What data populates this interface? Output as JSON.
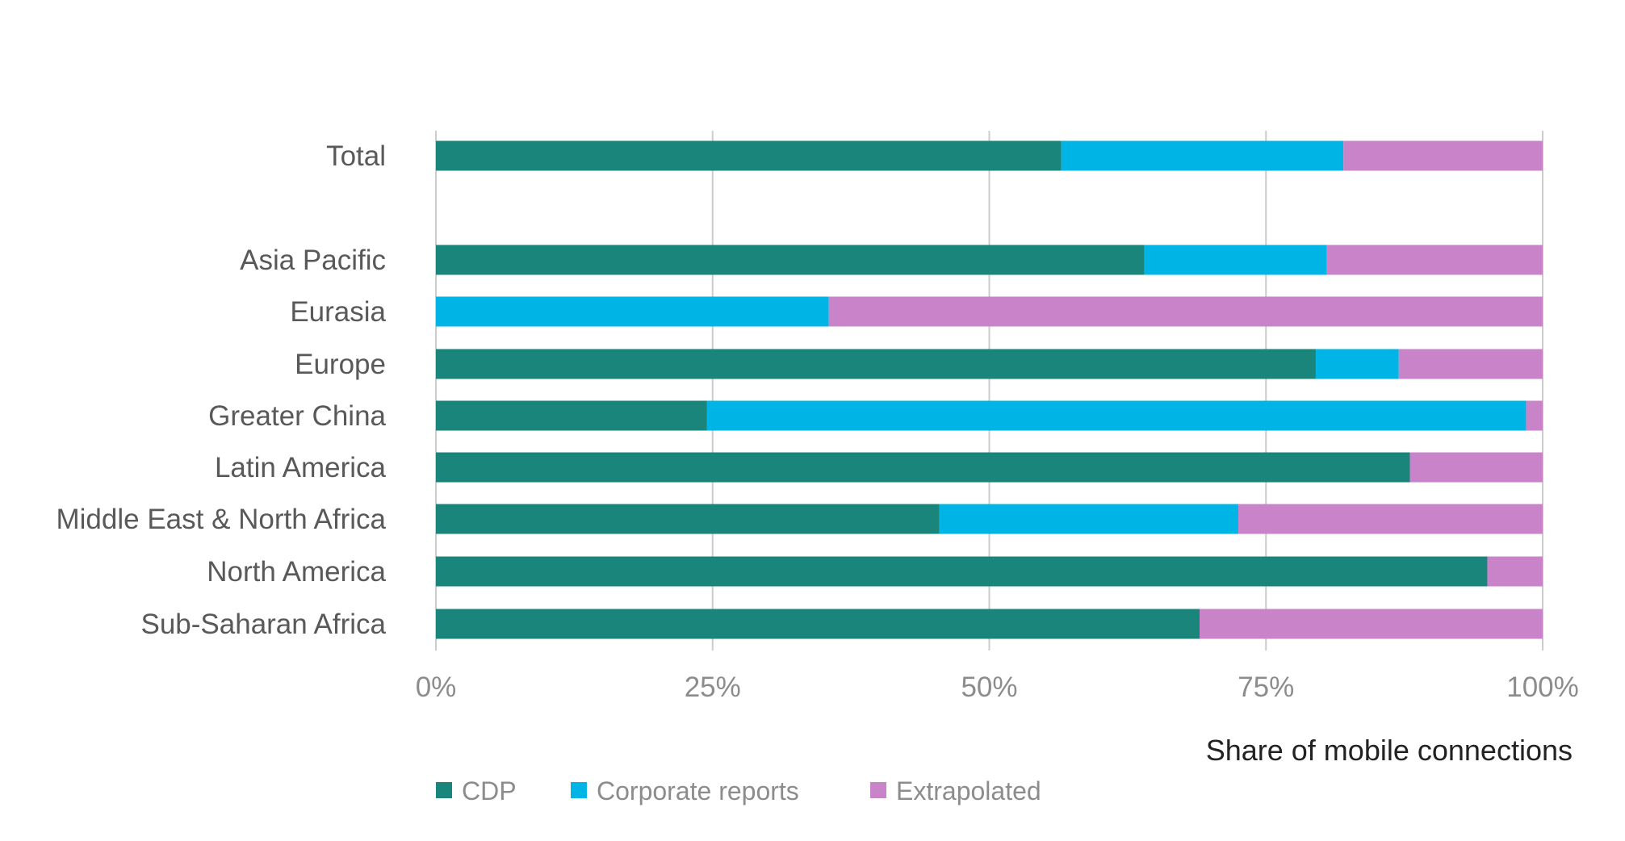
{
  "chart_data": {
    "type": "bar",
    "orientation": "horizontal",
    "stacked": true,
    "categories": [
      "Total",
      "",
      "Asia Pacific",
      "Eurasia",
      "Europe",
      "Greater China",
      "Latin America",
      "Middle East & North Africa",
      "North America",
      "Sub-Saharan Africa"
    ],
    "series": [
      {
        "name": "CDP",
        "color": "#1a857a",
        "values": [
          56.5,
          null,
          64,
          0,
          79.5,
          24.5,
          88,
          45.5,
          95,
          69
        ]
      },
      {
        "name": "Corporate reports",
        "color": "#00b5e6",
        "values": [
          25.5,
          null,
          16.5,
          35.5,
          7.5,
          74,
          0,
          27,
          0,
          0
        ]
      },
      {
        "name": "Extrapolated",
        "color": "#c983c8",
        "values": [
          18,
          null,
          19.5,
          64.5,
          13,
          1.5,
          12,
          27.5,
          5,
          31
        ]
      }
    ],
    "xlim": [
      0,
      100
    ],
    "xticks": [
      "0%",
      "25%",
      "50%",
      "75%",
      "100%"
    ],
    "xlabel": "Share of mobile connections",
    "ylabel": "",
    "title": "",
    "grid": true,
    "legend_position": "bottom-left"
  }
}
